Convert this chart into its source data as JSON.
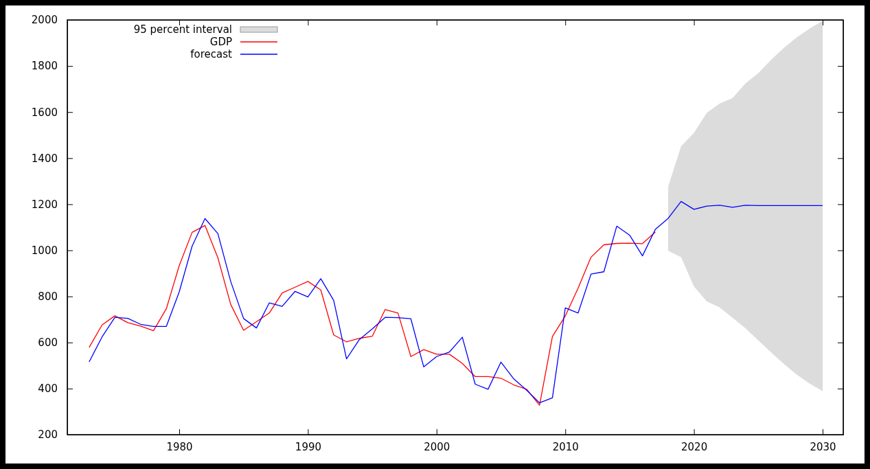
{
  "chart_data": {
    "type": "line",
    "xlim": [
      1971.3,
      2031.6
    ],
    "ylim": [
      200,
      2000
    ],
    "xticks": [
      1980,
      1990,
      2000,
      2010,
      2020,
      2030
    ],
    "yticks": [
      200,
      400,
      600,
      800,
      1000,
      1200,
      1400,
      1600,
      1800,
      2000
    ],
    "grid": false,
    "legend": "top left",
    "line_style": "solid",
    "marker": "none",
    "annotations": [
      "95 percent interval"
    ],
    "series": [
      {
        "name": "GDP",
        "color": "#ff0000",
        "x": [
          1973,
          1974,
          1975,
          1976,
          1977,
          1978,
          1979,
          1980,
          1981,
          1982,
          1983,
          1984,
          1985,
          1986,
          1987,
          1988,
          1989,
          1990,
          1991,
          1992,
          1993,
          1994,
          1995,
          1996,
          1997,
          1998,
          1999,
          2000,
          2001,
          2002,
          2003,
          2004,
          2005,
          2006,
          2007,
          2008,
          2009,
          2010,
          2011,
          2012,
          2013,
          2014,
          2015,
          2016,
          2017
        ],
        "values": [
          579,
          676,
          716,
          686,
          671,
          651,
          747,
          934,
          1078,
          1108,
          968,
          765,
          653,
          690,
          728,
          815,
          840,
          865,
          828,
          633,
          603,
          618,
          627,
          743,
          728,
          539,
          569,
          549,
          549,
          509,
          452,
          452,
          445,
          416,
          397,
          328,
          626,
          715,
          836,
          970,
          1024,
          1030,
          1031,
          1029,
          1080
        ]
      },
      {
        "name": "forecast",
        "color": "#0000ff",
        "x": [
          1973,
          1974,
          1975,
          1976,
          1977,
          1978,
          1979,
          1980,
          1981,
          1982,
          1983,
          1984,
          1985,
          1986,
          1987,
          1988,
          1989,
          1990,
          1991,
          1992,
          1993,
          1994,
          1995,
          1996,
          1997,
          1998,
          1999,
          2000,
          2001,
          2002,
          2003,
          2004,
          2005,
          2006,
          2007,
          2008,
          2009,
          2010,
          2011,
          2012,
          2013,
          2014,
          2015,
          2016,
          2017,
          2018,
          2019,
          2020,
          2021,
          2022,
          2023,
          2024,
          2025,
          2026,
          2027,
          2028,
          2029,
          2030
        ],
        "values": [
          516,
          624,
          709,
          705,
          679,
          670,
          670,
          820,
          1018,
          1138,
          1073,
          865,
          704,
          663,
          772,
          757,
          822,
          798,
          877,
          783,
          529,
          613,
          659,
          709,
          708,
          703,
          494,
          539,
          559,
          623,
          419,
          397,
          515,
          442,
          393,
          338,
          360,
          750,
          728,
          897,
          907,
          1105,
          1066,
          976,
          1091,
          1139,
          1212,
          1178,
          1192,
          1196,
          1187,
          1196,
          1194,
          1194,
          1194,
          1194,
          1194,
          1194
        ],
        "lower": [
          null,
          null,
          null,
          null,
          null,
          null,
          null,
          null,
          null,
          null,
          null,
          null,
          null,
          null,
          null,
          null,
          null,
          null,
          null,
          null,
          null,
          null,
          null,
          null,
          null,
          null,
          null,
          null,
          null,
          null,
          null,
          null,
          null,
          null,
          null,
          null,
          null,
          null,
          null,
          null,
          null,
          null,
          null,
          null,
          null,
          998,
          970,
          843,
          778,
          752,
          707,
          662,
          609,
          557,
          506,
          460,
          421,
          389
        ],
        "upper": [
          null,
          null,
          null,
          null,
          null,
          null,
          null,
          null,
          null,
          null,
          null,
          null,
          null,
          null,
          null,
          null,
          null,
          null,
          null,
          null,
          null,
          null,
          null,
          null,
          null,
          null,
          null,
          null,
          null,
          null,
          null,
          null,
          null,
          null,
          null,
          null,
          null,
          null,
          null,
          null,
          null,
          null,
          null,
          null,
          null,
          1277,
          1452,
          1510,
          1597,
          1637,
          1661,
          1724,
          1769,
          1827,
          1879,
          1925,
          1963,
          1996
        ]
      }
    ]
  }
}
